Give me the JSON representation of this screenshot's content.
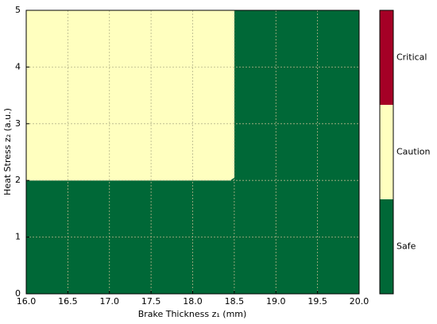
{
  "chart_data": {
    "type": "region",
    "xlabel": "Brake Thickness z₁ (mm)",
    "ylabel": "Heat Stress z₂ (a.u.)",
    "xlim": [
      16,
      20
    ],
    "ylim": [
      0,
      5
    ],
    "xticks": [
      {
        "value": 16,
        "label": "16.0"
      },
      {
        "value": 16.5,
        "label": "16.5"
      },
      {
        "value": 17,
        "label": "17.0"
      },
      {
        "value": 17.5,
        "label": "17.5"
      },
      {
        "value": 18,
        "label": "18.0"
      },
      {
        "value": 18.5,
        "label": "18.5"
      },
      {
        "value": 19,
        "label": "19.0"
      },
      {
        "value": 19.5,
        "label": "19.5"
      },
      {
        "value": 20,
        "label": "20.0"
      }
    ],
    "yticks": [
      0,
      1,
      2,
      3,
      4,
      5
    ],
    "grid": true,
    "series": [
      {
        "name": "Safe",
        "color": "#006837",
        "x": [
          16,
          20,
          20,
          18.5,
          18.5,
          18.45,
          16
        ],
        "y": [
          0,
          0,
          5,
          5,
          2.05,
          2,
          2
        ]
      },
      {
        "name": "Caution",
        "color": "#ffffbf",
        "x": [
          16,
          18.45,
          18.5,
          18.5,
          16
        ],
        "y": [
          2,
          2,
          2.05,
          5,
          5
        ]
      },
      {
        "name": "Critical",
        "color": "#a50026",
        "x": [],
        "y": []
      }
    ]
  }
}
